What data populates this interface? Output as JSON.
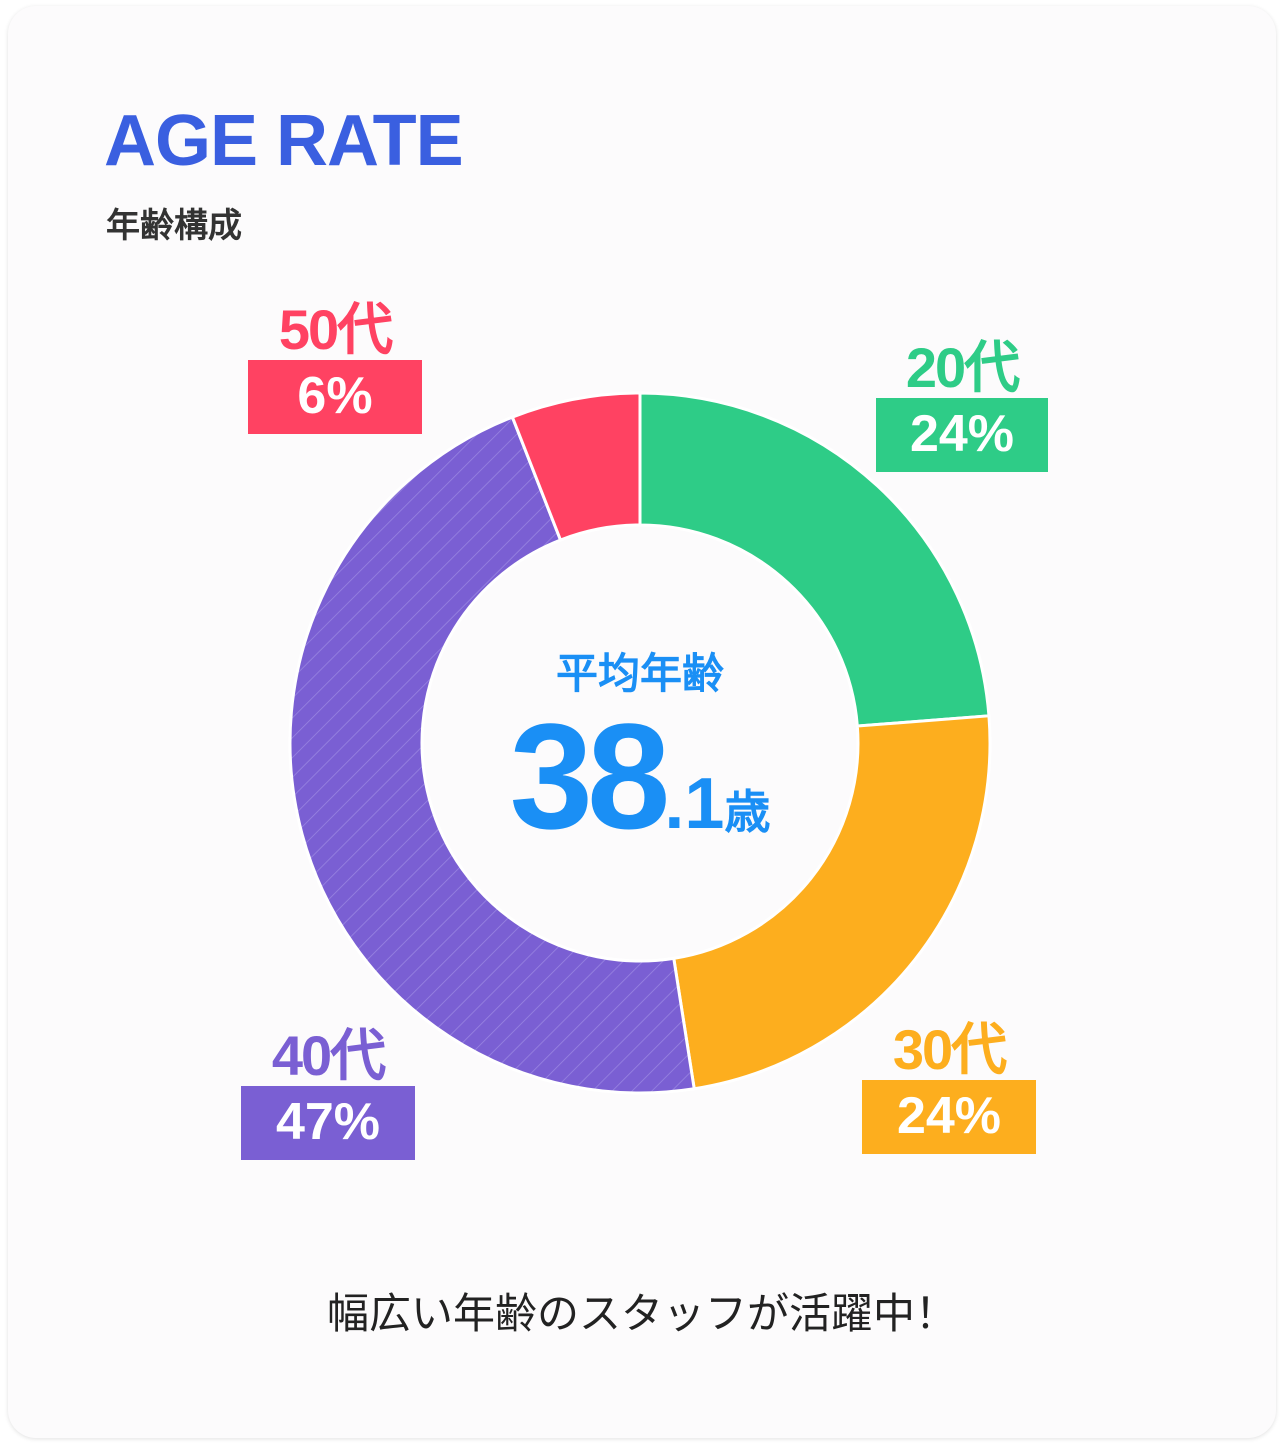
{
  "header": {
    "title": "AGE RATE",
    "subtitle": "年齢構成"
  },
  "center": {
    "label": "平均年齢",
    "value_int": "38",
    "value_dec": ".1",
    "unit": "歳"
  },
  "caption": "幅広い年齢のスタッフが活躍中！",
  "chart_data": {
    "type": "pie",
    "subtype": "donut",
    "title": "年齢構成",
    "categories": [
      "20代",
      "30代",
      "40代",
      "50代"
    ],
    "values": [
      24,
      24,
      47,
      6
    ],
    "labels": [
      "24%",
      "24%",
      "47%",
      "6%"
    ],
    "unit_suffix": "代",
    "colors": [
      "#2ecc87",
      "#fdae1e",
      "#7a5fd3",
      "#ff4262"
    ],
    "start": "top",
    "direction": "clockwise"
  }
}
